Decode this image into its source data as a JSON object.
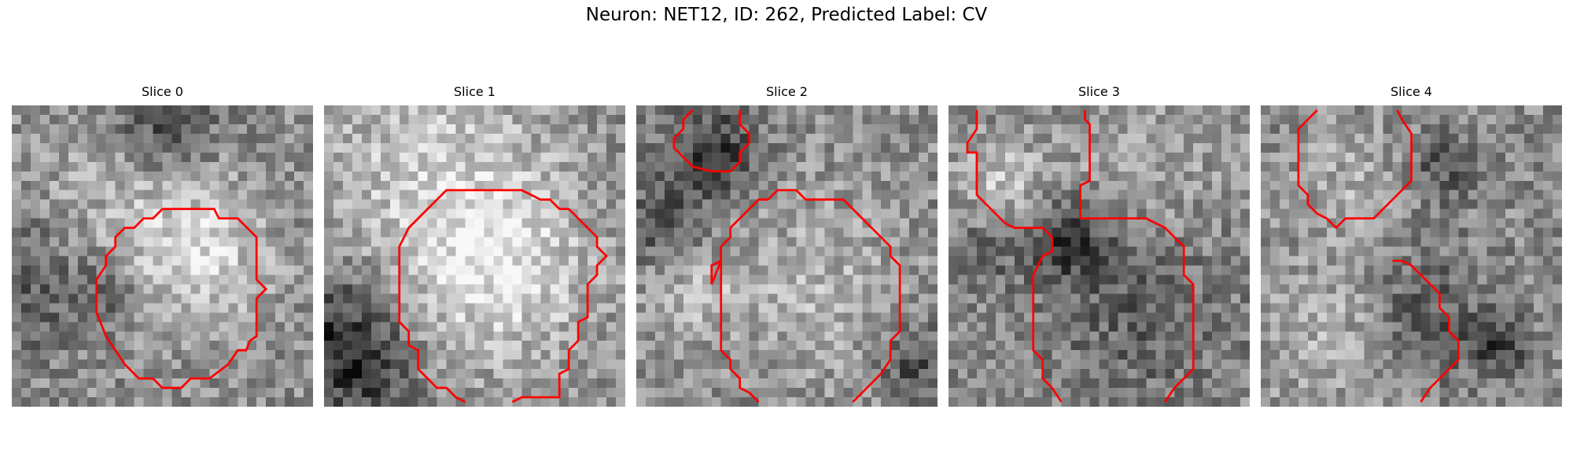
{
  "figure": {
    "title": "Neuron: NET12, ID: 262, Predicted Label: CV",
    "contour_color": "#ff0000",
    "colormap": "gray"
  },
  "panels": [
    {
      "title": "Slice 0",
      "seed": 11,
      "blobs": [
        [
          0.62,
          0.5,
          0.24,
          70
        ],
        [
          0.38,
          0.25,
          0.3,
          35
        ]
      ],
      "darks": [
        [
          0.5,
          0.05,
          0.18,
          80
        ],
        [
          0.05,
          0.6,
          0.2,
          55
        ],
        [
          0.33,
          0.62,
          0.1,
          60
        ]
      ]
    },
    {
      "title": "Slice 1",
      "seed": 23,
      "blobs": [
        [
          0.58,
          0.55,
          0.32,
          75
        ],
        [
          0.35,
          0.2,
          0.4,
          55
        ]
      ],
      "darks": [
        [
          0.05,
          0.75,
          0.2,
          90
        ],
        [
          0.15,
          0.92,
          0.15,
          60
        ]
      ]
    },
    {
      "title": "Slice 2",
      "seed": 37,
      "blobs": [
        [
          0.6,
          0.6,
          0.3,
          40
        ],
        [
          0.18,
          0.6,
          0.15,
          45
        ]
      ],
      "darks": [
        [
          0.25,
          0.15,
          0.15,
          85
        ],
        [
          0.1,
          0.4,
          0.15,
          60
        ],
        [
          0.92,
          0.85,
          0.12,
          70
        ]
      ]
    },
    {
      "title": "Slice 3",
      "seed": 53,
      "blobs": [
        [
          0.18,
          0.25,
          0.14,
          55
        ],
        [
          0.65,
          0.2,
          0.25,
          30
        ]
      ],
      "darks": [
        [
          0.4,
          0.45,
          0.14,
          80
        ],
        [
          0.65,
          0.7,
          0.3,
          45
        ],
        [
          0.1,
          0.5,
          0.12,
          40
        ]
      ]
    },
    {
      "title": "Slice 4",
      "seed": 71,
      "blobs": [
        [
          0.25,
          0.75,
          0.25,
          40
        ],
        [
          0.3,
          0.25,
          0.18,
          35
        ]
      ],
      "darks": [
        [
          0.55,
          0.7,
          0.22,
          55
        ],
        [
          0.6,
          0.2,
          0.12,
          55
        ],
        [
          0.8,
          0.8,
          0.1,
          70
        ]
      ]
    }
  ]
}
